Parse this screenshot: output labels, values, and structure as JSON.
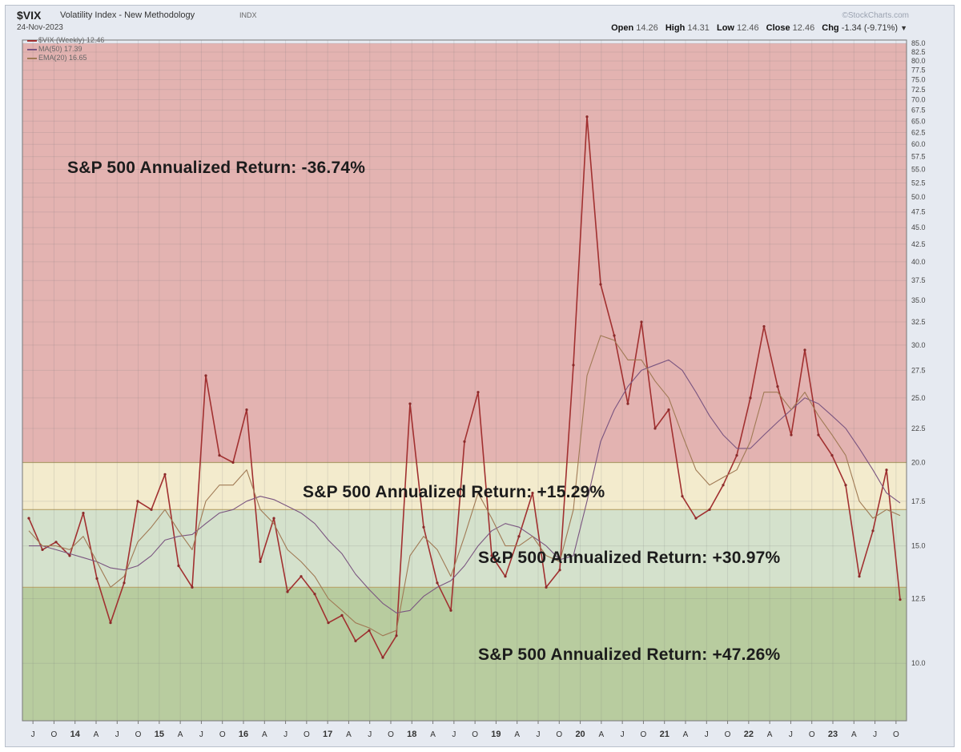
{
  "header": {
    "symbol": "$VIX",
    "name": "Volatility Index - New Methodology",
    "exchange": "INDX",
    "date": "24-Nov-2023",
    "brand": "©StockCharts.com",
    "open_label": "Open",
    "open": "14.26",
    "high_label": "High",
    "high": "14.31",
    "low_label": "Low",
    "low": "12.46",
    "close_label": "Close",
    "close": "12.46",
    "chg_label": "Chg",
    "chg": "-1.34 (-9.71%)",
    "menu_icon": "dropdown-caret-icon"
  },
  "legend": [
    {
      "label": "$VIX (Weekly) 12.46",
      "color": "#a13030"
    },
    {
      "label": "MA(50) 17.39",
      "color": "#7a5580"
    },
    {
      "label": "EMA(20) 16.65",
      "color": "#a07a55"
    }
  ],
  "zones": [
    {
      "from": 20,
      "to": 85,
      "color": "#e3b3b1"
    },
    {
      "from": 17,
      "to": 20,
      "color": "#f3ebcd"
    },
    {
      "from": 13,
      "to": 17,
      "color": "#d4e1cc"
    },
    {
      "from": 8,
      "to": 13,
      "color": "#b8cc9f"
    }
  ],
  "annotations": [
    {
      "text": "S&P 500 Annualized Return:  -36.74%",
      "zone": "red"
    },
    {
      "text": "S&P 500 Annualized Return:  +15.29%",
      "zone": "yellow"
    },
    {
      "text": "S&P 500 Annualized Return:  +30.97%",
      "zone": "light-green"
    },
    {
      "text": "S&P 500 Annualized Return:  +47.26%",
      "zone": "green"
    }
  ],
  "chart_data": {
    "type": "line",
    "title": "$VIX Volatility Index - New Methodology (Weekly)",
    "y_scale": "log",
    "ylim": [
      8.2,
      86
    ],
    "y_ticks": [
      10.0,
      12.5,
      15.0,
      17.5,
      20.0,
      22.5,
      25.0,
      27.5,
      30.0,
      32.5,
      35.0,
      37.5,
      40.0,
      42.5,
      45.0,
      47.5,
      50.0,
      52.5,
      55.0,
      57.5,
      60.0,
      62.5,
      65.0,
      67.5,
      70.0,
      72.5,
      75.0,
      77.5,
      80.0,
      82.5,
      85.0
    ],
    "x_ticks": [
      "J",
      "O",
      "14",
      "A",
      "J",
      "O",
      "15",
      "A",
      "J",
      "O",
      "16",
      "A",
      "J",
      "O",
      "17",
      "A",
      "J",
      "O",
      "18",
      "A",
      "J",
      "O",
      "19",
      "A",
      "J",
      "O",
      "20",
      "A",
      "J",
      "O",
      "21",
      "A",
      "J",
      "O",
      "22",
      "A",
      "J",
      "O",
      "23",
      "A",
      "J",
      "O"
    ],
    "x": [
      "2013-06",
      "2013-08",
      "2013-10",
      "2013-12",
      "2014-02",
      "2014-04",
      "2014-06",
      "2014-08",
      "2014-10",
      "2014-12",
      "2015-02",
      "2015-04",
      "2015-06",
      "2015-08",
      "2015-10",
      "2015-12",
      "2016-02",
      "2016-04",
      "2016-06",
      "2016-08",
      "2016-10",
      "2016-12",
      "2017-02",
      "2017-04",
      "2017-06",
      "2017-08",
      "2017-10",
      "2017-12",
      "2018-02",
      "2018-04",
      "2018-06",
      "2018-08",
      "2018-10",
      "2018-12",
      "2019-02",
      "2019-04",
      "2019-06",
      "2019-08",
      "2019-10",
      "2019-12",
      "2020-02",
      "2020-03",
      "2020-04",
      "2020-06",
      "2020-08",
      "2020-10",
      "2020-12",
      "2021-02",
      "2021-04",
      "2021-06",
      "2021-08",
      "2021-10",
      "2021-12",
      "2022-02",
      "2022-04",
      "2022-06",
      "2022-08",
      "2022-10",
      "2022-12",
      "2023-02",
      "2023-04",
      "2023-06",
      "2023-08",
      "2023-10",
      "2023-11"
    ],
    "series": [
      {
        "name": "$VIX (Weekly) 12.46",
        "values": [
          16.5,
          14.8,
          15.2,
          14.5,
          16.8,
          13.4,
          11.5,
          13.2,
          17.5,
          17.0,
          19.2,
          14.0,
          13.0,
          27.0,
          20.5,
          20.0,
          24.0,
          14.2,
          16.5,
          12.8,
          13.5,
          12.7,
          11.5,
          11.8,
          10.8,
          11.2,
          10.2,
          11.0,
          24.5,
          16.0,
          13.2,
          12.0,
          21.5,
          25.5,
          14.5,
          13.5,
          15.5,
          18.0,
          13.0,
          13.8,
          28.0,
          66.0,
          37.0,
          31.0,
          24.5,
          32.5,
          22.5,
          24.0,
          17.8,
          16.5,
          17.0,
          18.5,
          20.5,
          25.0,
          32.0,
          26.0,
          22.0,
          29.5,
          22.0,
          20.5,
          18.5,
          13.5,
          15.8,
          19.5,
          12.46
        ]
      },
      {
        "name": "MA(50) 17.39",
        "values": [
          15.0,
          15.0,
          14.8,
          14.6,
          14.4,
          14.2,
          13.9,
          13.8,
          14.0,
          14.5,
          15.3,
          15.5,
          15.6,
          16.2,
          16.8,
          17.0,
          17.5,
          17.8,
          17.6,
          17.2,
          16.8,
          16.2,
          15.3,
          14.6,
          13.6,
          12.9,
          12.3,
          11.9,
          12.0,
          12.6,
          13.0,
          13.3,
          14.0,
          15.0,
          15.8,
          16.2,
          16.0,
          15.5,
          15.0,
          14.3,
          14.5,
          17.5,
          21.5,
          24.0,
          26.0,
          27.5,
          28.0,
          28.5,
          27.5,
          25.5,
          23.5,
          22.0,
          21.0,
          21.0,
          22.0,
          23.0,
          24.0,
          25.0,
          24.5,
          23.5,
          22.5,
          21.0,
          19.5,
          18.0,
          17.39
        ]
      },
      {
        "name": "EMA(20) 16.65",
        "values": [
          15.8,
          15.0,
          15.0,
          14.8,
          15.5,
          14.2,
          13.0,
          13.5,
          15.2,
          16.0,
          17.0,
          15.8,
          14.8,
          17.5,
          18.5,
          18.5,
          19.5,
          17.0,
          16.2,
          14.8,
          14.2,
          13.5,
          12.5,
          12.0,
          11.5,
          11.3,
          11.0,
          11.2,
          14.5,
          15.5,
          14.8,
          13.5,
          15.5,
          18.0,
          16.5,
          15.0,
          15.0,
          15.5,
          14.5,
          14.2,
          17.0,
          27.0,
          31.0,
          30.5,
          28.5,
          28.5,
          26.5,
          25.0,
          22.0,
          19.5,
          18.5,
          19.0,
          19.5,
          21.5,
          25.5,
          25.5,
          24.0,
          25.5,
          23.5,
          22.0,
          20.5,
          17.5,
          16.5,
          17.0,
          16.65
        ]
      }
    ]
  }
}
